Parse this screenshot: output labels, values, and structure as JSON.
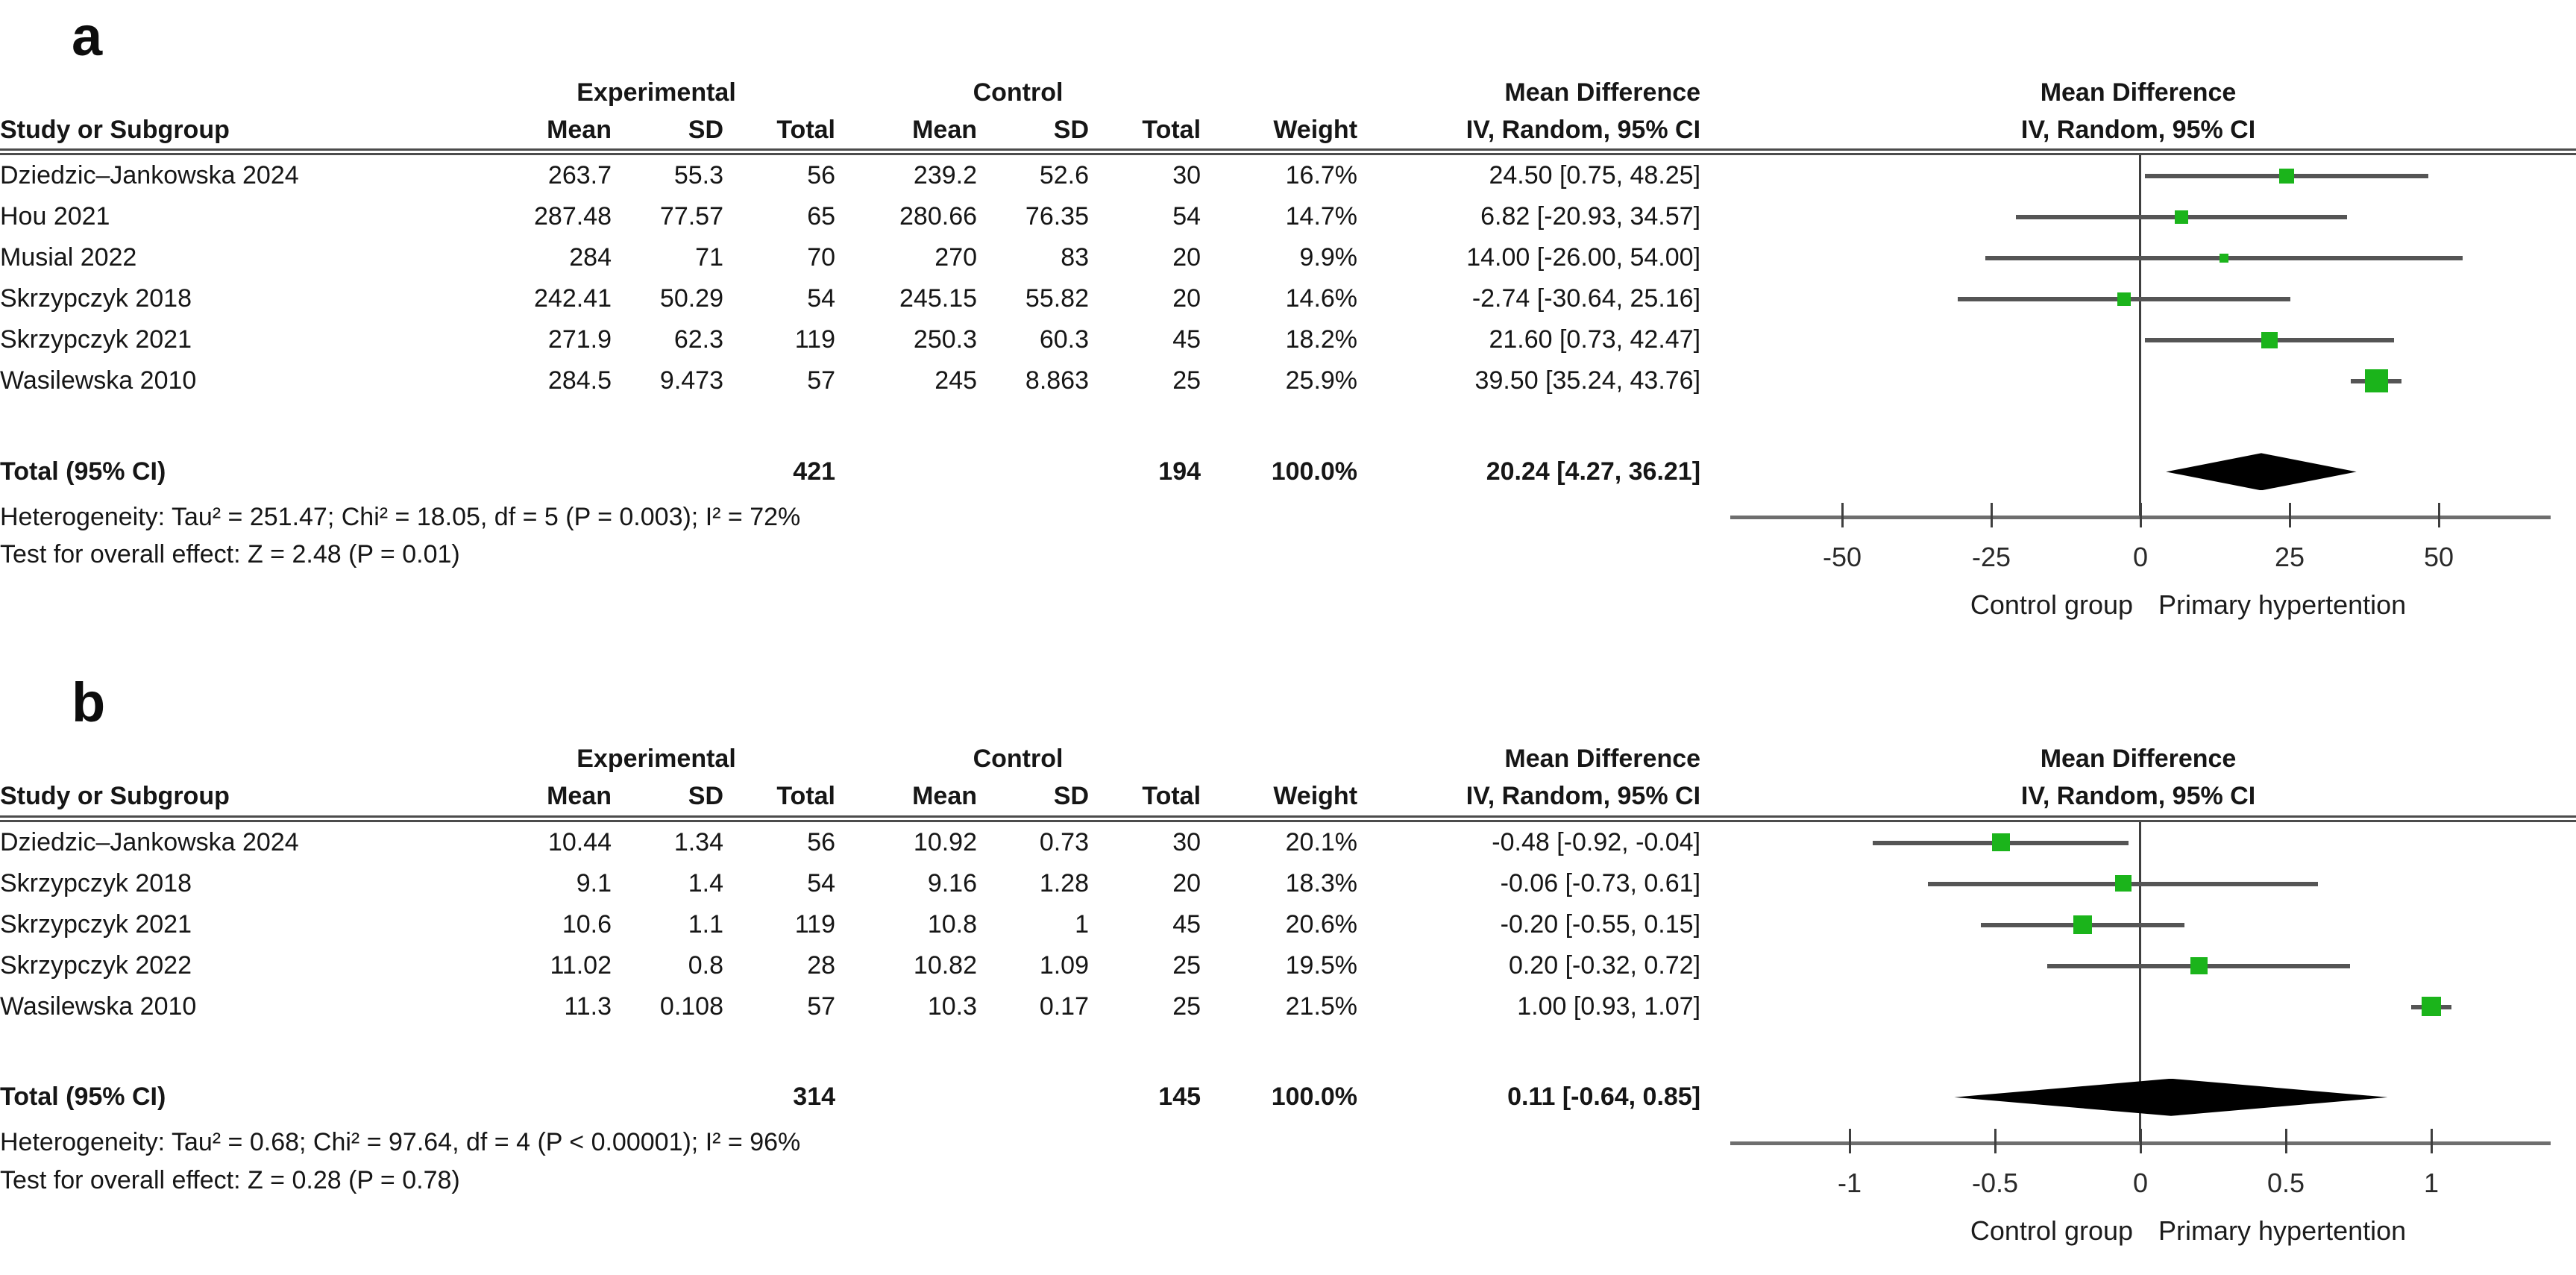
{
  "headers": {
    "study": "Study or Subgroup",
    "group_experimental": "Experimental",
    "group_control": "Control",
    "mean": "Mean",
    "sd": "SD",
    "total": "Total",
    "weight": "Weight",
    "effect": "Mean Difference",
    "effect_sub": "IV, Random, 95% CI"
  },
  "chart_data": [
    {
      "type": "forest",
      "panel_label": "a",
      "effect_measure": "Mean Difference",
      "model": "IV, Random, 95% CI",
      "studies": [
        {
          "name": "Dziedzic–Jankowska 2024",
          "exp_mean": "263.7",
          "exp_sd": "55.3",
          "exp_total": "56",
          "ctl_mean": "239.2",
          "ctl_sd": "52.6",
          "ctl_total": "30",
          "weight": "16.7%",
          "ci_text": "24.50 [0.75, 48.25]",
          "md": 24.5,
          "low": 0.75,
          "high": 48.25,
          "w": 16.7
        },
        {
          "name": "Hou 2021",
          "exp_mean": "287.48",
          "exp_sd": "77.57",
          "exp_total": "65",
          "ctl_mean": "280.66",
          "ctl_sd": "76.35",
          "ctl_total": "54",
          "weight": "14.7%",
          "ci_text": "6.82 [-20.93, 34.57]",
          "md": 6.82,
          "low": -20.93,
          "high": 34.57,
          "w": 14.7
        },
        {
          "name": "Musial 2022",
          "exp_mean": "284",
          "exp_sd": "71",
          "exp_total": "70",
          "ctl_mean": "270",
          "ctl_sd": "83",
          "ctl_total": "20",
          "weight": "9.9%",
          "ci_text": "14.00 [-26.00, 54.00]",
          "md": 14.0,
          "low": -26.0,
          "high": 54.0,
          "w": 9.9
        },
        {
          "name": "Skrzypczyk 2018",
          "exp_mean": "242.41",
          "exp_sd": "50.29",
          "exp_total": "54",
          "ctl_mean": "245.15",
          "ctl_sd": "55.82",
          "ctl_total": "20",
          "weight": "14.6%",
          "ci_text": "-2.74 [-30.64, 25.16]",
          "md": -2.74,
          "low": -30.64,
          "high": 25.16,
          "w": 14.6
        },
        {
          "name": "Skrzypczyk 2021",
          "exp_mean": "271.9",
          "exp_sd": "62.3",
          "exp_total": "119",
          "ctl_mean": "250.3",
          "ctl_sd": "60.3",
          "ctl_total": "45",
          "weight": "18.2%",
          "ci_text": "21.60 [0.73, 42.47]",
          "md": 21.6,
          "low": 0.73,
          "high": 42.47,
          "w": 18.2
        },
        {
          "name": "Wasilewska 2010",
          "exp_mean": "284.5",
          "exp_sd": "9.473",
          "exp_total": "57",
          "ctl_mean": "245",
          "ctl_sd": "8.863",
          "ctl_total": "25",
          "weight": "25.9%",
          "ci_text": "39.50 [35.24, 43.76]",
          "md": 39.5,
          "low": 35.24,
          "high": 43.76,
          "w": 25.9
        }
      ],
      "total": {
        "label": "Total (95% CI)",
        "exp_total": "421",
        "ctl_total": "194",
        "weight": "100.0%",
        "ci_text": "20.24 [4.27, 36.21]",
        "md": 20.24,
        "low": 4.27,
        "high": 36.21
      },
      "footnotes": {
        "heterogeneity": "Heterogeneity: Tau² = 251.47; Chi² = 18.05, df = 5 (P = 0.003); I² = 72%",
        "overall": "Test for overall effect: Z = 2.48 (P = 0.01)"
      },
      "axis": {
        "ticks": [
          -50,
          -25,
          0,
          25,
          50
        ],
        "tick_labels": [
          "-50",
          "-25",
          "0",
          "25",
          "50"
        ],
        "range": [
          -68,
          68
        ]
      },
      "xlabel_left": "Control group",
      "xlabel_right": "Primary hypertention"
    },
    {
      "type": "forest",
      "panel_label": "b",
      "effect_measure": "Mean Difference",
      "model": "IV, Random, 95% CI",
      "studies": [
        {
          "name": "Dziedzic–Jankowska 2024",
          "exp_mean": "10.44",
          "exp_sd": "1.34",
          "exp_total": "56",
          "ctl_mean": "10.92",
          "ctl_sd": "0.73",
          "ctl_total": "30",
          "weight": "20.1%",
          "ci_text": "-0.48 [-0.92, -0.04]",
          "md": -0.48,
          "low": -0.92,
          "high": -0.04,
          "w": 20.1
        },
        {
          "name": "Skrzypczyk 2018",
          "exp_mean": "9.1",
          "exp_sd": "1.4",
          "exp_total": "54",
          "ctl_mean": "9.16",
          "ctl_sd": "1.28",
          "ctl_total": "20",
          "weight": "18.3%",
          "ci_text": "-0.06 [-0.73, 0.61]",
          "md": -0.06,
          "low": -0.73,
          "high": 0.61,
          "w": 18.3
        },
        {
          "name": "Skrzypczyk 2021",
          "exp_mean": "10.6",
          "exp_sd": "1.1",
          "exp_total": "119",
          "ctl_mean": "10.8",
          "ctl_sd": "1",
          "ctl_total": "45",
          "weight": "20.6%",
          "ci_text": "-0.20 [-0.55, 0.15]",
          "md": -0.2,
          "low": -0.55,
          "high": 0.15,
          "w": 20.6
        },
        {
          "name": "Skrzypczyk 2022",
          "exp_mean": "11.02",
          "exp_sd": "0.8",
          "exp_total": "28",
          "ctl_mean": "10.82",
          "ctl_sd": "1.09",
          "ctl_total": "25",
          "weight": "19.5%",
          "ci_text": "0.20 [-0.32, 0.72]",
          "md": 0.2,
          "low": -0.32,
          "high": 0.72,
          "w": 19.5
        },
        {
          "name": "Wasilewska 2010",
          "exp_mean": "11.3",
          "exp_sd": "0.108",
          "exp_total": "57",
          "ctl_mean": "10.3",
          "ctl_sd": "0.17",
          "ctl_total": "25",
          "weight": "21.5%",
          "ci_text": "1.00 [0.93, 1.07]",
          "md": 1.0,
          "low": 0.93,
          "high": 1.07,
          "w": 21.5
        }
      ],
      "total": {
        "label": "Total (95% CI)",
        "exp_total": "314",
        "ctl_total": "145",
        "weight": "100.0%",
        "ci_text": "0.11 [-0.64, 0.85]",
        "md": 0.11,
        "low": -0.64,
        "high": 0.85
      },
      "footnotes": {
        "heterogeneity": "Heterogeneity: Tau² = 0.68; Chi² = 97.64, df = 4 (P < 0.00001); I² = 96%",
        "overall": "Test for overall effect: Z = 0.28 (P = 0.78)"
      },
      "axis": {
        "ticks": [
          -1,
          -0.5,
          0,
          0.5,
          1
        ],
        "tick_labels": [
          "-1",
          "-0.5",
          "0",
          "0.5",
          "1"
        ],
        "range": [
          -1.4,
          1.4
        ]
      },
      "xlabel_left": "Control group",
      "xlabel_right": "Primary hypertention"
    }
  ]
}
